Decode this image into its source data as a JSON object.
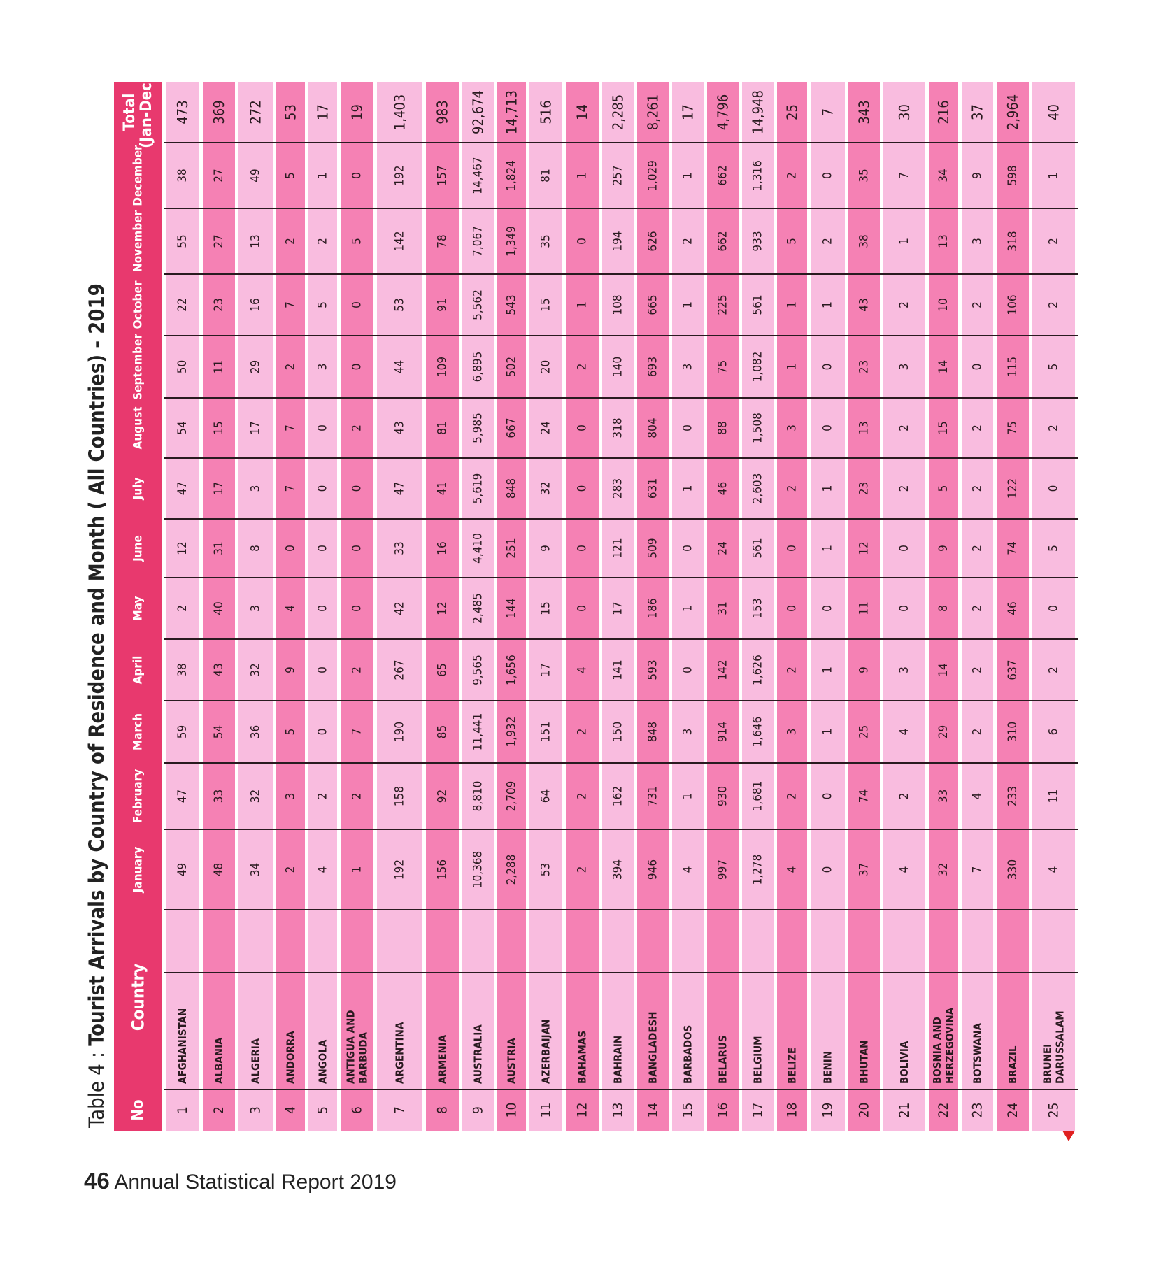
{
  "table": {
    "title_prefix": "Table 4 : ",
    "title_main": "Tourist Arrivals by Country of Residence and Month ( All Countries) - 2019",
    "headers": {
      "no": "No",
      "country": "Country",
      "months": [
        "January",
        "February",
        "March",
        "April",
        "May",
        "June",
        "July",
        "August",
        "September",
        "October",
        "November",
        "December"
      ],
      "total_line1": "Total",
      "total_line2": "(Jan-Dec)"
    },
    "rows": [
      {
        "no": "1",
        "country": [
          "AFGHANISTAN"
        ],
        "values": [
          "49",
          "47",
          "59",
          "38",
          "2",
          "12",
          "47",
          "54",
          "50",
          "22",
          "55",
          "38"
        ],
        "total": "473"
      },
      {
        "no": "2",
        "country": [
          "ALBANIA"
        ],
        "values": [
          "48",
          "33",
          "54",
          "43",
          "40",
          "31",
          "17",
          "15",
          "11",
          "23",
          "27",
          "27"
        ],
        "total": "369"
      },
      {
        "no": "3",
        "country": [
          "ALGERIA"
        ],
        "values": [
          "34",
          "32",
          "36",
          "32",
          "3",
          "8",
          "3",
          "17",
          "29",
          "16",
          "13",
          "49"
        ],
        "total": "272"
      },
      {
        "no": "4",
        "country": [
          "ANDORRA"
        ],
        "values": [
          "2",
          "3",
          "5",
          "9",
          "4",
          "0",
          "7",
          "7",
          "2",
          "7",
          "2",
          "5"
        ],
        "total": "53"
      },
      {
        "no": "5",
        "country": [
          "ANGOLA"
        ],
        "values": [
          "4",
          "2",
          "0",
          "0",
          "0",
          "0",
          "0",
          "0",
          "3",
          "5",
          "2",
          "1"
        ],
        "total": "17"
      },
      {
        "no": "6",
        "country": [
          "ANTIGUA AND",
          "BARBUDA"
        ],
        "values": [
          "1",
          "2",
          "7",
          "2",
          "0",
          "0",
          "0",
          "2",
          "0",
          "0",
          "5",
          "0"
        ],
        "total": "19"
      },
      {
        "no": "7",
        "country": [
          "ARGENTINA"
        ],
        "values": [
          "192",
          "158",
          "190",
          "267",
          "42",
          "33",
          "47",
          "43",
          "44",
          "53",
          "142",
          "192"
        ],
        "total": "1,403"
      },
      {
        "no": "8",
        "country": [
          "ARMENIA"
        ],
        "values": [
          "156",
          "92",
          "85",
          "65",
          "12",
          "16",
          "41",
          "81",
          "109",
          "91",
          "78",
          "157"
        ],
        "total": "983"
      },
      {
        "no": "9",
        "country": [
          "AUSTRALIA"
        ],
        "values": [
          "10,368",
          "8,810",
          "11,441",
          "9,565",
          "2,485",
          "4,410",
          "5,619",
          "5,985",
          "6,895",
          "5,562",
          "7,067",
          "14,467"
        ],
        "total": "92,674"
      },
      {
        "no": "10",
        "country": [
          "AUSTRIA"
        ],
        "values": [
          "2,288",
          "2,709",
          "1,932",
          "1,656",
          "144",
          "251",
          "848",
          "667",
          "502",
          "543",
          "1,349",
          "1,824"
        ],
        "total": "14,713"
      },
      {
        "no": "11",
        "country": [
          "AZERBAIJAN"
        ],
        "values": [
          "53",
          "64",
          "151",
          "17",
          "15",
          "9",
          "32",
          "24",
          "20",
          "15",
          "35",
          "81"
        ],
        "total": "516"
      },
      {
        "no": "12",
        "country": [
          "BAHAMAS"
        ],
        "values": [
          "2",
          "2",
          "2",
          "4",
          "0",
          "0",
          "0",
          "0",
          "2",
          "1",
          "0",
          "1"
        ],
        "total": "14"
      },
      {
        "no": "13",
        "country": [
          "BAHRAIN"
        ],
        "values": [
          "394",
          "162",
          "150",
          "141",
          "17",
          "121",
          "283",
          "318",
          "140",
          "108",
          "194",
          "257"
        ],
        "total": "2,285"
      },
      {
        "no": "14",
        "country": [
          "BANGLADESH"
        ],
        "values": [
          "946",
          "731",
          "848",
          "593",
          "186",
          "509",
          "631",
          "804",
          "693",
          "665",
          "626",
          "1,029"
        ],
        "total": "8,261"
      },
      {
        "no": "15",
        "country": [
          "BARBADOS"
        ],
        "values": [
          "4",
          "1",
          "3",
          "0",
          "1",
          "0",
          "1",
          "0",
          "3",
          "1",
          "2",
          "1"
        ],
        "total": "17"
      },
      {
        "no": "16",
        "country": [
          "BELARUS"
        ],
        "values": [
          "997",
          "930",
          "914",
          "142",
          "31",
          "24",
          "46",
          "88",
          "75",
          "225",
          "662",
          "662"
        ],
        "total": "4,796"
      },
      {
        "no": "17",
        "country": [
          "BELGIUM"
        ],
        "values": [
          "1,278",
          "1,681",
          "1,646",
          "1,626",
          "153",
          "561",
          "2,603",
          "1,508",
          "1,082",
          "561",
          "933",
          "1,316"
        ],
        "total": "14,948"
      },
      {
        "no": "18",
        "country": [
          "BELIZE"
        ],
        "values": [
          "4",
          "2",
          "3",
          "2",
          "0",
          "0",
          "2",
          "3",
          "1",
          "1",
          "5",
          "2"
        ],
        "total": "25"
      },
      {
        "no": "19",
        "country": [
          "BENIN"
        ],
        "values": [
          "0",
          "0",
          "1",
          "1",
          "0",
          "1",
          "1",
          "0",
          "0",
          "1",
          "2",
          "0"
        ],
        "total": "7"
      },
      {
        "no": "20",
        "country": [
          "BHUTAN"
        ],
        "values": [
          "37",
          "74",
          "25",
          "9",
          "11",
          "12",
          "23",
          "13",
          "23",
          "43",
          "38",
          "35"
        ],
        "total": "343"
      },
      {
        "no": "21",
        "country": [
          "BOLIVIA"
        ],
        "values": [
          "4",
          "2",
          "4",
          "3",
          "0",
          "0",
          "2",
          "2",
          "3",
          "2",
          "1",
          "7"
        ],
        "total": "30"
      },
      {
        "no": "22",
        "country": [
          "BOSNIA AND",
          "HERZEGOVINA"
        ],
        "values": [
          "32",
          "33",
          "29",
          "14",
          "8",
          "9",
          "5",
          "15",
          "14",
          "10",
          "13",
          "34"
        ],
        "total": "216"
      },
      {
        "no": "23",
        "country": [
          "BOTSWANA"
        ],
        "values": [
          "7",
          "4",
          "2",
          "2",
          "2",
          "2",
          "2",
          "2",
          "0",
          "2",
          "3",
          "9"
        ],
        "total": "37"
      },
      {
        "no": "24",
        "country": [
          "BRAZIL"
        ],
        "values": [
          "330",
          "233",
          "310",
          "637",
          "46",
          "74",
          "122",
          "75",
          "115",
          "106",
          "318",
          "598"
        ],
        "total": "2,964"
      },
      {
        "no": "25",
        "country": [
          "BRUNEI",
          "DARUSSALAM"
        ],
        "values": [
          "4",
          "11",
          "6",
          "2",
          "0",
          "5",
          "0",
          "2",
          "5",
          "2",
          "2",
          "1"
        ],
        "total": "40"
      }
    ]
  },
  "footer": {
    "page_number": "46",
    "report_title": "Annual Statistical Report 2019"
  },
  "colors": {
    "header_bg": "#e8396e",
    "header_text": "#ffffff",
    "dark_row": "#f581b4",
    "light_row": "#f9bcdf",
    "grid_line": "#2a1a20",
    "text": "#2a1a20",
    "marker": "#e02020"
  }
}
